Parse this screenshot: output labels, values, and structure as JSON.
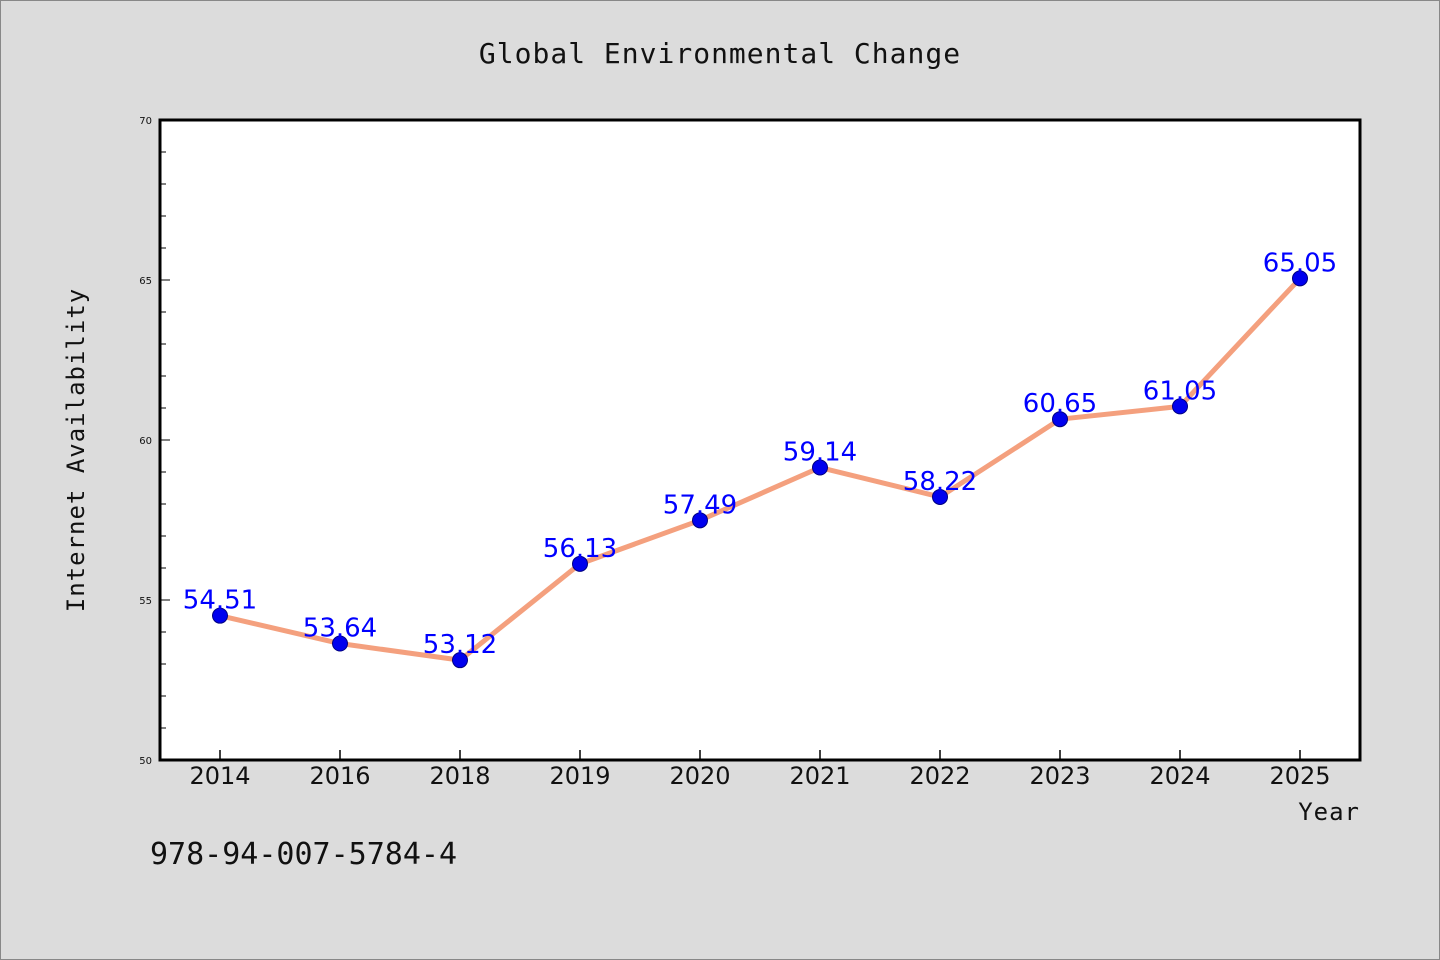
{
  "chart_data": {
    "type": "line",
    "title": "Global Environmental Change",
    "xlabel": "Year",
    "ylabel": "Internet Availability",
    "categories": [
      "2014",
      "2016",
      "2018",
      "2019",
      "2020",
      "2021",
      "2022",
      "2023",
      "2024",
      "2025"
    ],
    "series": [
      {
        "values": [
          54.51,
          53.64,
          53.12,
          56.13,
          57.49,
          59.14,
          58.22,
          60.65,
          61.05,
          65.05
        ]
      }
    ],
    "data_labels": [
      "54.51",
      "53.64",
      "53.12",
      "56.13",
      "57.49",
      "59.14",
      "58.22",
      "60.65",
      "61.05",
      "65.05"
    ],
    "ylim": [
      50,
      70
    ],
    "yticks": [
      "50",
      "55",
      "60",
      "65",
      "70"
    ],
    "grid": false,
    "legend": "none",
    "colors": {
      "line": "#f4a07e",
      "marker": "#0000ee",
      "label": "#0000ff",
      "background": "#dcdcdc",
      "plot_background": "#ffffff"
    }
  },
  "footer": {
    "code": "978-94-007-5784-4"
  }
}
